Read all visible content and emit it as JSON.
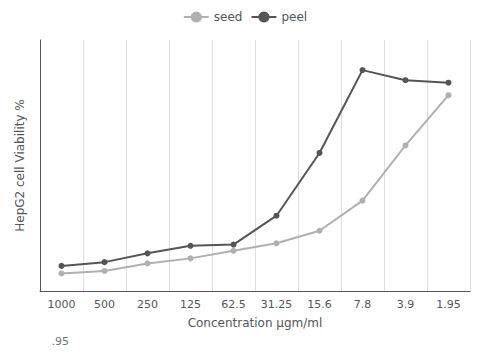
{
  "chart_data": {
    "type": "line",
    "xlabel": "Concentration µgm/ml",
    "ylabel": "HepG2 cell Viability %",
    "categories": [
      "1000",
      "500",
      "250",
      "125",
      "62.5",
      "31.25",
      "15.6",
      "7.8",
      "3.9",
      "1.95"
    ],
    "series": [
      {
        "name": "seed",
        "color": "#b0b0b0",
        "values": [
          7,
          8,
          11,
          13,
          16,
          19,
          24,
          36,
          58,
          78
        ]
      },
      {
        "name": "peel",
        "color": "#555555",
        "values": [
          10,
          11.5,
          15,
          18,
          18.5,
          30,
          55,
          88,
          84,
          83
        ]
      }
    ],
    "ylim": [
      0,
      100
    ],
    "yticks": [],
    "grid": true,
    "legend": "top",
    "tick_labels": "x",
    "marker": "circle",
    "annotations": [
      ".95"
    ]
  }
}
